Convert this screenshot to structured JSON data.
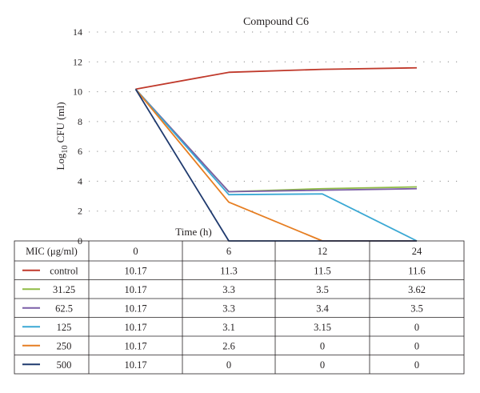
{
  "chart_data": {
    "type": "line",
    "title": "Compound C6",
    "xlabel": "Time (h)",
    "ylabel_main": "Log",
    "ylabel_sub": "10",
    "ylabel_rest": " CFU (ml)",
    "table_header": "MIC (μg/ml)",
    "x": [
      "0",
      "6",
      "12",
      "24"
    ],
    "ylim": [
      0,
      14
    ],
    "yticks": [
      "0",
      "2",
      "4",
      "6",
      "8",
      "10",
      "12",
      "14"
    ],
    "grid": "horizontal dotted",
    "series": [
      {
        "name": "control",
        "color": "#c0392b",
        "values": [
          10.17,
          11.3,
          11.5,
          11.6
        ],
        "labels": [
          "10.17",
          "11.3",
          "11.5",
          "11.6"
        ]
      },
      {
        "name": "31.25",
        "color": "#8fbc45",
        "values": [
          10.17,
          3.3,
          3.5,
          3.62
        ],
        "labels": [
          "10.17",
          "3.3",
          "3.5",
          "3.62"
        ]
      },
      {
        "name": "62.5",
        "color": "#7b5ea7",
        "values": [
          10.17,
          3.3,
          3.4,
          3.5
        ],
        "labels": [
          "10.17",
          "3.3",
          "3.4",
          "3.5"
        ]
      },
      {
        "name": "125",
        "color": "#3aa8d4",
        "values": [
          10.17,
          3.1,
          3.15,
          0
        ],
        "labels": [
          "10.17",
          "3.1",
          "3.15",
          "0"
        ]
      },
      {
        "name": "250",
        "color": "#e67e22",
        "values": [
          10.17,
          2.6,
          0,
          0
        ],
        "labels": [
          "10.17",
          "2.6",
          "0",
          "0"
        ]
      },
      {
        "name": "500",
        "color": "#1f3a6e",
        "values": [
          10.17,
          0,
          0,
          0
        ],
        "labels": [
          "10.17",
          "0",
          "0",
          "0"
        ]
      }
    ]
  }
}
